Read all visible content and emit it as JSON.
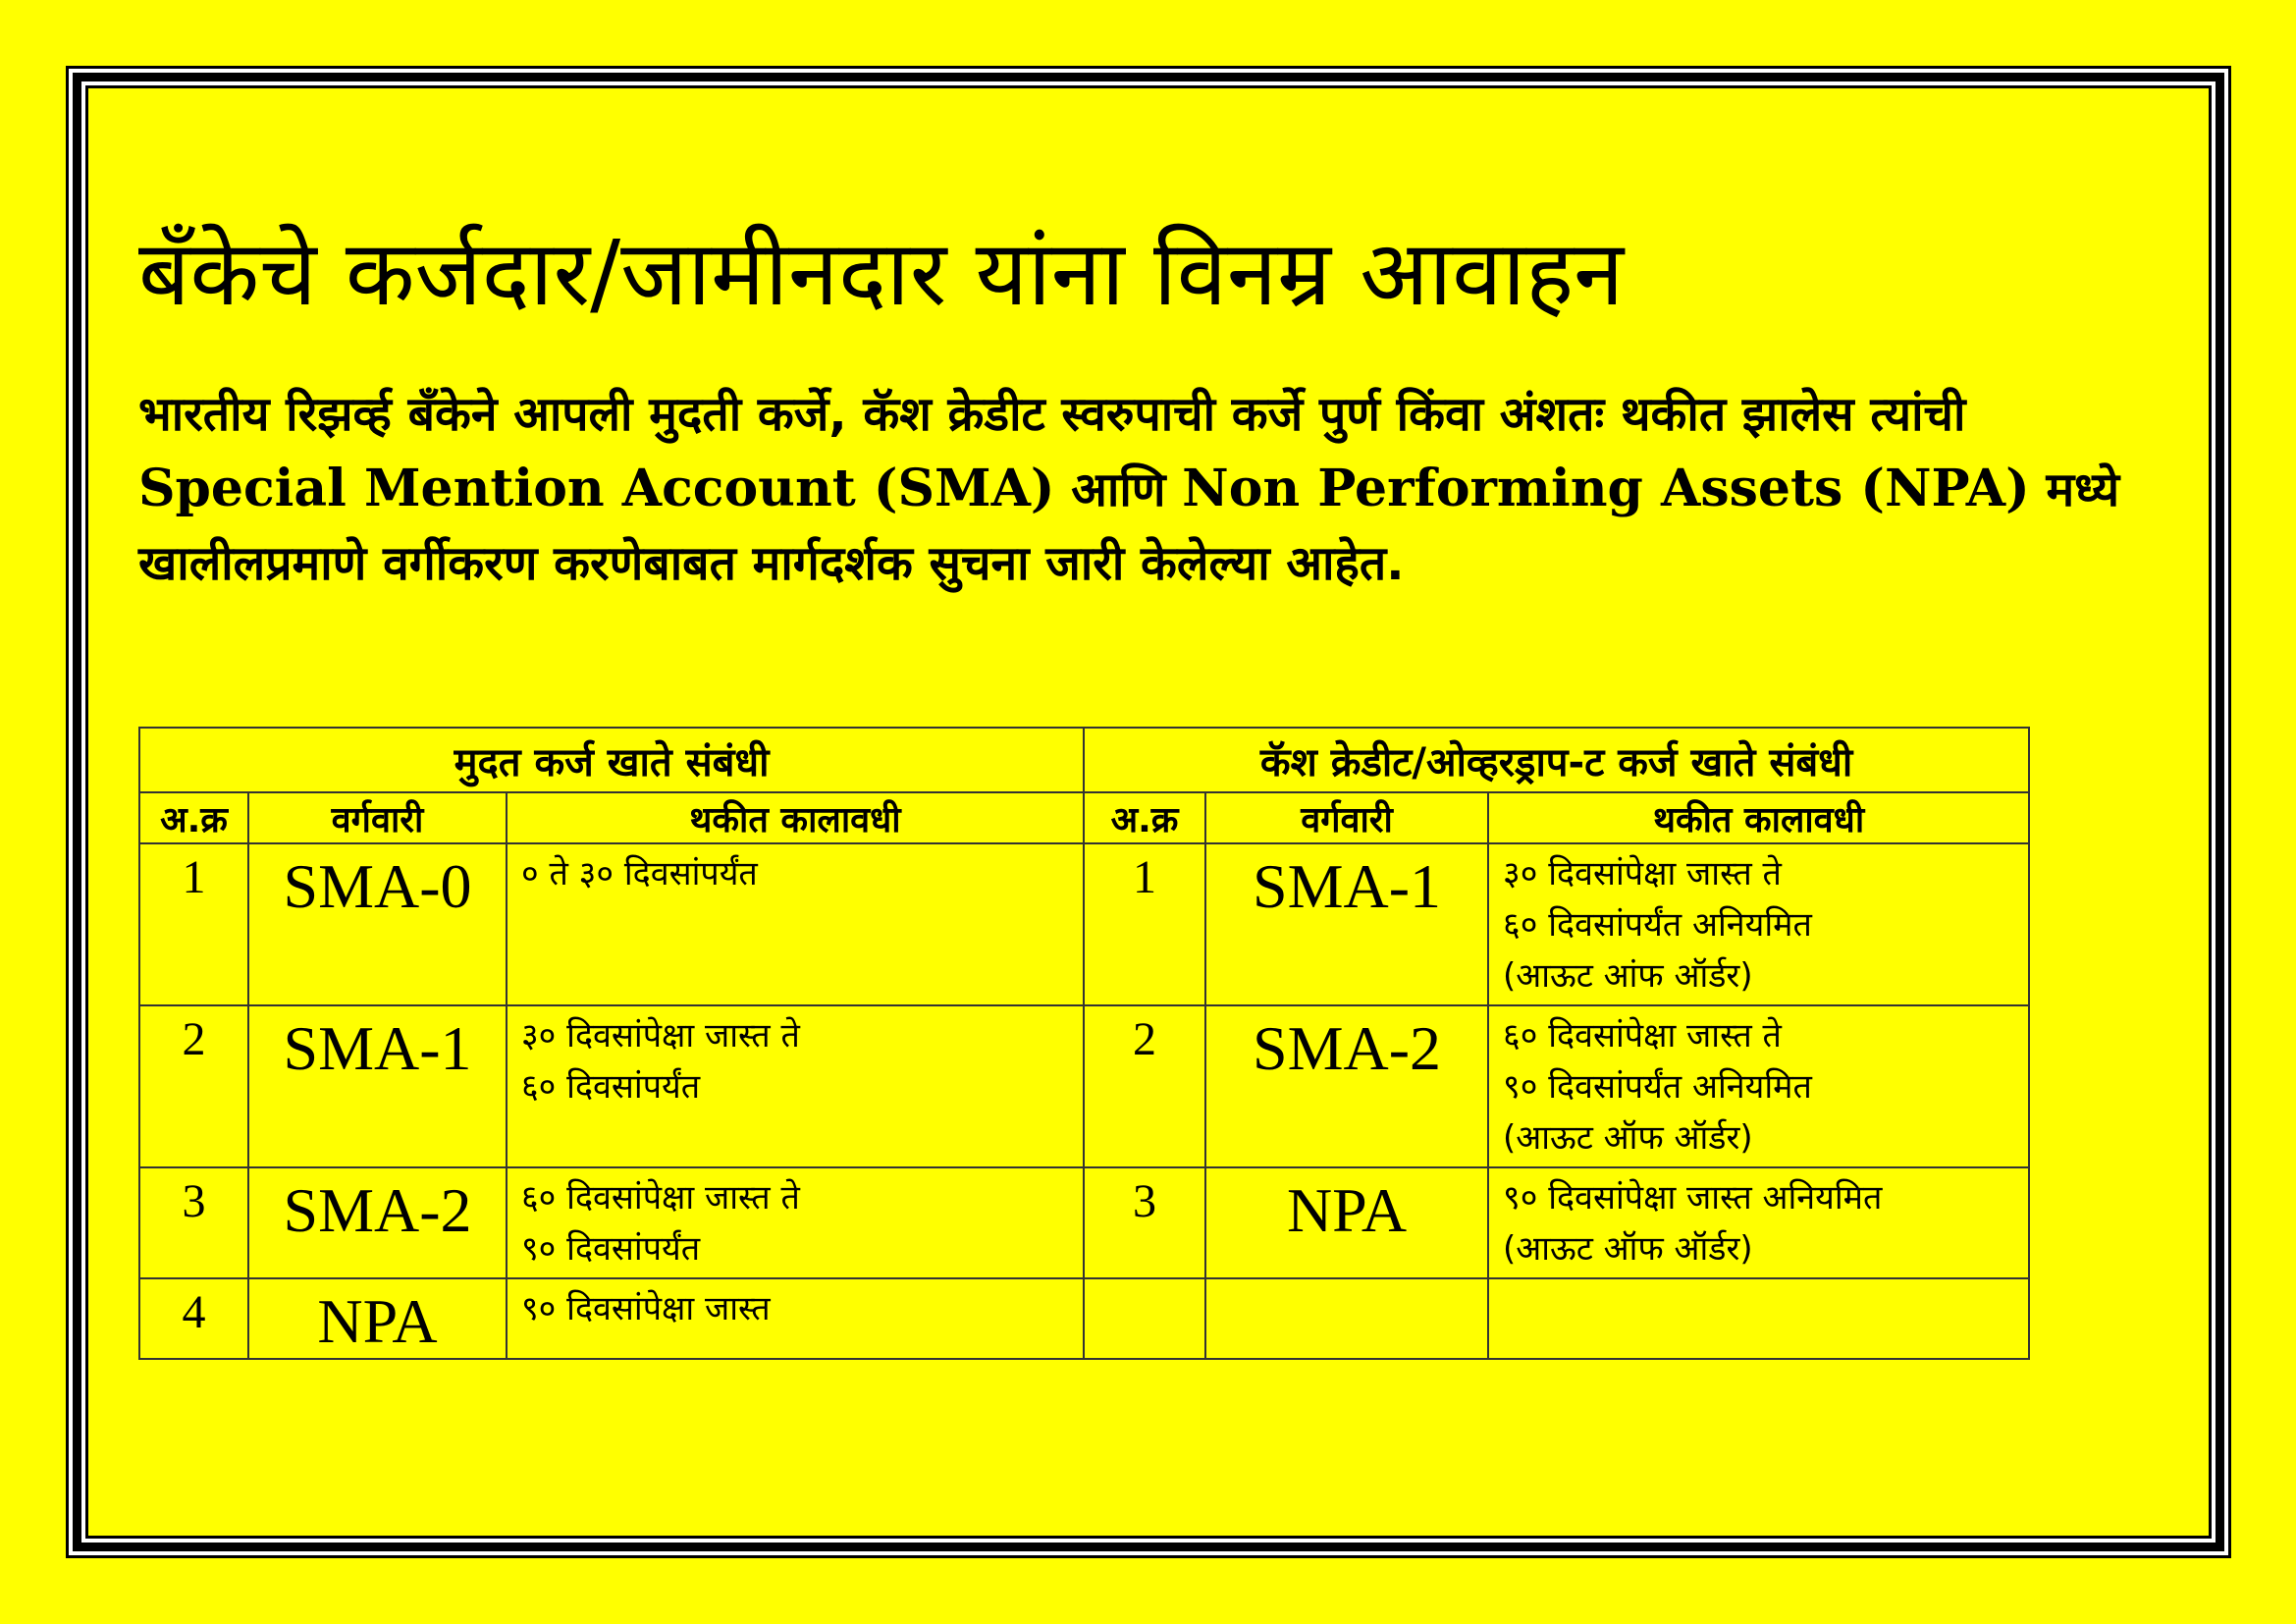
{
  "title": "बॅंकेचे कर्जदार/जामीनदार यांना विनम्र आवाहन",
  "paragraph": {
    "part1": "भारतीय रिझर्व्ह बॅंकेने आपली मुदती कर्जे, कॅश क्रेडीट स्वरुपाची कर्जे पुर्ण किंवा अंशतः थकीत झालेस त्यांची ",
    "sma": "Special Mention Account (SMA)",
    "and": " आणि ",
    "npa": "Non Performing Assets (NPA)",
    "part2": " मध्ये खालीलप्रमाणे वर्गीकरण करणेबाबत मार्गदर्शक सुचना जारी केलेल्या आहेत."
  },
  "table": {
    "left_title": "मुदत कर्ज खाते संबंधी",
    "right_title": "कॅश क्रेडीट/ओव्हरड्राप-ट कर्ज खाते संबंधी",
    "col_sr": "अ.क्र",
    "col_class": "वर्गवारी",
    "col_period": "थकीत कालावधी",
    "rows": [
      {
        "l_sr": "1",
        "l_class": "SMA-0",
        "l_period": "० ते ३० दिवसांपर्यंत",
        "r_sr": "1",
        "r_class": "SMA-1",
        "r_period": "३० दिवसांपेक्षा जास्त ते\n६० दिवसांपर्यंत अनियमित\n(आऊट आंफ ऑर्डर)"
      },
      {
        "l_sr": "2",
        "l_class": "SMA-1",
        "l_period": "३० दिवसांपेक्षा जास्त ते\n६० दिवसांपर्यंत",
        "r_sr": "2",
        "r_class": "SMA-2",
        "r_period": "६० दिवसांपेक्षा जास्त ते\n९० दिवसांपर्यंत अनियमित\n(आऊट ऑफ ऑर्डर)"
      },
      {
        "l_sr": "3",
        "l_class": "SMA-2",
        "l_period": "६० दिवसांपेक्षा जास्त ते\n९० दिवसांपर्यंत",
        "r_sr": "3",
        "r_class": "NPA",
        "r_period": "९० दिवसांपेक्षा जास्त अनियमित\n(आऊट ऑफ ऑर्डर)"
      },
      {
        "l_sr": "4",
        "l_class": "NPA",
        "l_period": "९० दिवसांपेक्षा जास्त",
        "r_sr": "",
        "r_class": "",
        "r_period": ""
      }
    ]
  },
  "colors": {
    "background": "#ffff00",
    "border": "#000000"
  }
}
